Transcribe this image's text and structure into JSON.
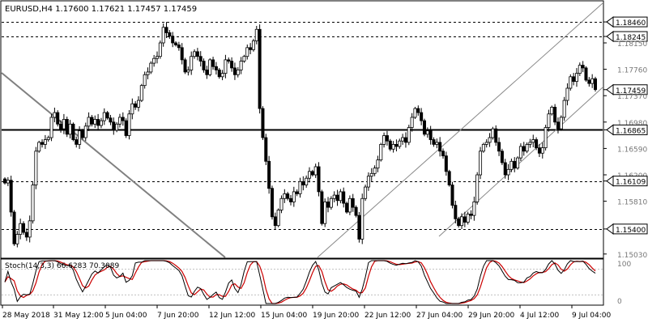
{
  "chart_data": {
    "type": "candlestick",
    "header": {
      "symbol": "EURUSD,H4",
      "open": "1.17600",
      "high": "1.17621",
      "low": "1.17457",
      "close": "1.17459"
    },
    "price_axis": {
      "ylim": [
        1.1498,
        1.1876
      ],
      "ticks": [
        "1.18460",
        "1.18245",
        "1.18150",
        "1.17760",
        "1.17459",
        "1.17370",
        "1.16980",
        "1.16865",
        "1.16590",
        "1.16200",
        "1.16109",
        "1.15810",
        "1.15400",
        "1.15030"
      ],
      "highlighted_ticks": [
        "1.18460",
        "1.18245",
        "1.17459",
        "1.16865",
        "1.16109",
        "1.15400"
      ]
    },
    "time_axis": {
      "labels": [
        "28 May 2018",
        "31 May 12:00",
        "5 Jun 04:00",
        "7 Jun 20:00",
        "12 Jun 12:00",
        "15 Jun 04:00",
        "19 Jun 20:00",
        "22 Jun 12:00",
        "27 Jun 04:00",
        "29 Jun 20:00",
        "4 Jul 12:00",
        "9 Jul 04:00"
      ]
    },
    "horizontal_levels": [
      {
        "price": 1.1846,
        "style": "dashed"
      },
      {
        "price": 1.18245,
        "style": "dashed"
      },
      {
        "price": 1.16865,
        "style": "solid-bold"
      },
      {
        "price": 1.16109,
        "style": "dashed"
      },
      {
        "price": 1.154,
        "style": "dashed"
      }
    ],
    "candles_close": [
      1.1608,
      1.1612,
      1.1565,
      1.1518,
      1.1532,
      1.1548,
      1.1535,
      1.1528,
      1.1552,
      1.1605,
      1.1655,
      1.1668,
      1.1665,
      1.1672,
      1.1675,
      1.1705,
      1.1712,
      1.1695,
      1.1688,
      1.1702,
      1.168,
      1.1695,
      1.1672,
      1.1665,
      1.1685,
      1.1675,
      1.1692,
      1.1705,
      1.1695,
      1.1702,
      1.1693,
      1.17,
      1.1712,
      1.1704,
      1.1698,
      1.1686,
      1.1695,
      1.1705,
      1.17,
      1.1678,
      1.171,
      1.1725,
      1.172,
      1.173,
      1.1752,
      1.1768,
      1.1772,
      1.1785,
      1.1792,
      1.1795,
      1.1815,
      1.1838,
      1.183,
      1.1825,
      1.1815,
      1.1812,
      1.1808,
      1.179,
      1.1772,
      1.1775,
      1.1795,
      1.1802,
      1.1795,
      1.1788,
      1.1775,
      1.1768,
      1.179,
      1.178,
      1.1775,
      1.1765,
      1.177,
      1.179,
      1.1788,
      1.1778,
      1.1768,
      1.1775,
      1.1788,
      1.1795,
      1.1808,
      1.1805,
      1.1818,
      1.1835,
      1.1718,
      1.1675,
      1.164,
      1.16,
      1.1558,
      1.1545,
      1.1568,
      1.1585,
      1.1592,
      1.1585,
      1.158,
      1.1595,
      1.1592,
      1.161,
      1.1605,
      1.1615,
      1.1625,
      1.162,
      1.1632,
      1.1595,
      1.1548,
      1.158,
      1.1572,
      1.1585,
      1.159,
      1.1582,
      1.1595,
      1.1578,
      1.1565,
      1.1585,
      1.1572,
      1.156,
      1.1525,
      1.1585,
      1.1602,
      1.1618,
      1.1622,
      1.163,
      1.1642,
      1.1665,
      1.1678,
      1.167,
      1.1658,
      1.1665,
      1.1662,
      1.167,
      1.1675,
      1.1668,
      1.169,
      1.1705,
      1.1718,
      1.1712,
      1.17,
      1.168,
      1.1685,
      1.1672,
      1.1665,
      1.1668,
      1.1655,
      1.1648,
      1.1625,
      1.1605,
      1.1575,
      1.1555,
      1.1545,
      1.1558,
      1.155,
      1.1562,
      1.156,
      1.158,
      1.162,
      1.1655,
      1.1665,
      1.1668,
      1.1675,
      1.1688,
      1.1668,
      1.1655,
      1.1638,
      1.162,
      1.1628,
      1.164,
      1.163,
      1.1645,
      1.1662,
      1.1655,
      1.1665,
      1.1668,
      1.1672,
      1.166,
      1.1652,
      1.166,
      1.169,
      1.171,
      1.172,
      1.1698,
      1.1688,
      1.1705,
      1.173,
      1.1748,
      1.1765,
      1.1758,
      1.177,
      1.1782,
      1.1778,
      1.176,
      1.1755,
      1.1762,
      1.1746
    ],
    "stochastic": {
      "label": "Stoch(14,3,3) 66.6283 70.3089",
      "k": 66.6283,
      "d": 70.3089,
      "ylim": [
        0,
        100
      ],
      "ticks": [
        "100",
        "0"
      ]
    },
    "colors": {
      "candle_bull": "#ffffff",
      "candle_bear": "#000000",
      "level_line": "#000000",
      "trend_line": "#808080",
      "channel_line": "#888888",
      "stoch_main": "#000000",
      "stoch_signal": "#cc0000",
      "label_bg": "#ffffff",
      "label_border": "#000000"
    }
  }
}
